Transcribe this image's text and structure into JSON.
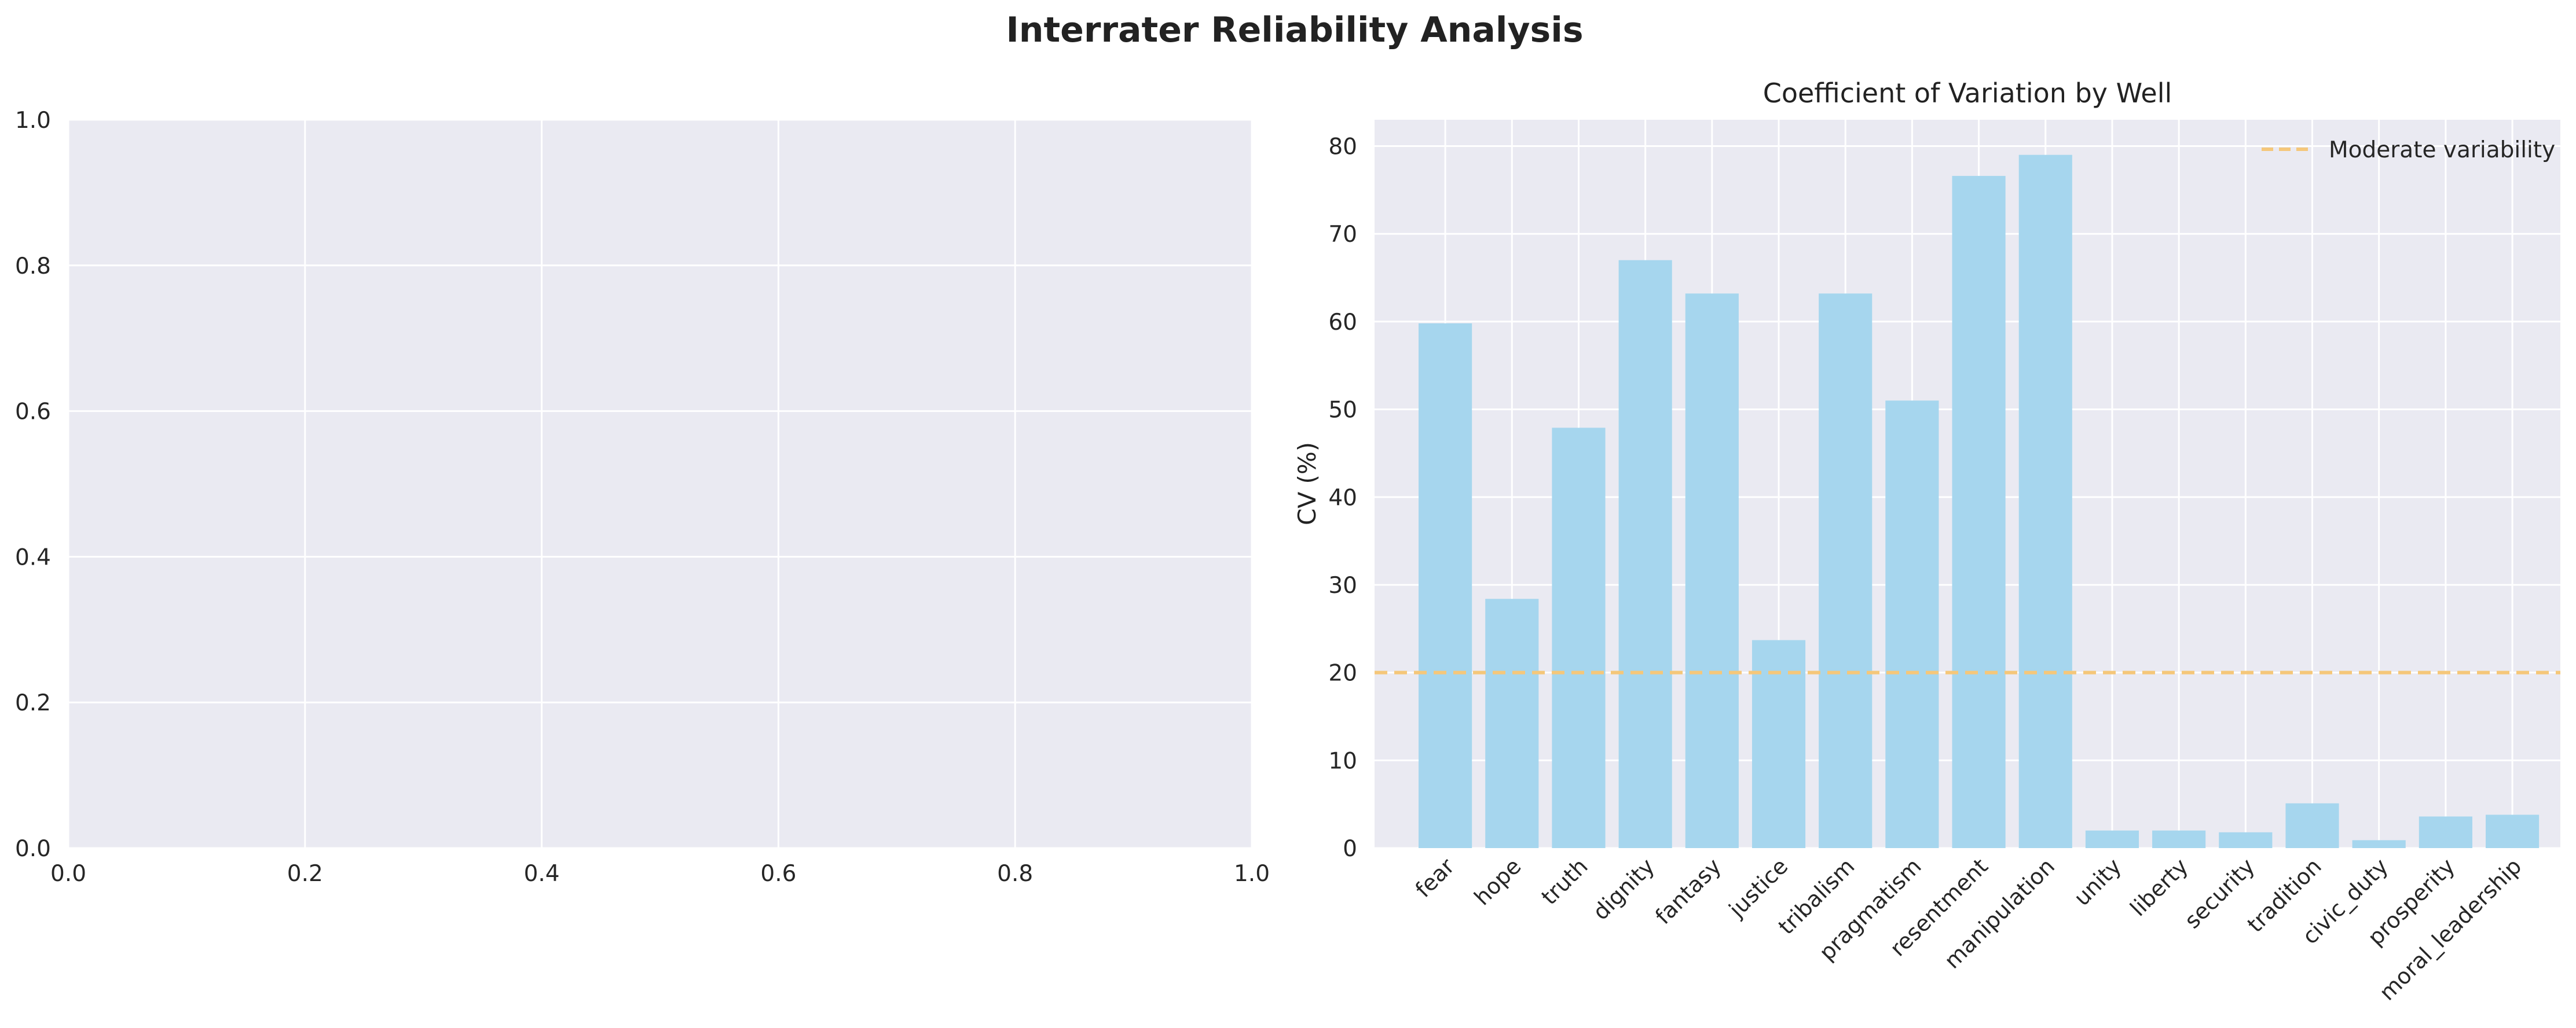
{
  "figure": {
    "title": "Interrater Reliability Analysis"
  },
  "chart_data": [
    {
      "type": "bar",
      "title": "",
      "xlabel": "",
      "ylabel": "",
      "empty": true,
      "xlim": [
        0.0,
        1.0
      ],
      "ylim": [
        0.0,
        1.0
      ],
      "xticks": [
        "0.0",
        "0.2",
        "0.4",
        "0.6",
        "0.8",
        "1.0"
      ],
      "yticks": [
        "0.0",
        "0.2",
        "0.4",
        "0.6",
        "0.8",
        "1.0"
      ],
      "grid": true
    },
    {
      "type": "bar",
      "title": "Coefficient of Variation by Well",
      "xlabel": "",
      "ylabel": "CV (%)",
      "categories": [
        "fear",
        "hope",
        "truth",
        "dignity",
        "fantasy",
        "justice",
        "tribalism",
        "pragmatism",
        "resentment",
        "manipulation",
        "unity",
        "liberty",
        "security",
        "tradition",
        "civic_duty",
        "prosperity",
        "moral_leadership"
      ],
      "values": [
        59.8,
        28.4,
        47.9,
        67.0,
        63.2,
        23.7,
        63.2,
        51.0,
        76.6,
        79.0,
        2.0,
        2.0,
        1.8,
        5.1,
        0.9,
        3.6,
        3.8
      ],
      "bar_color": "#a6d6ee",
      "ylim": [
        0,
        83
      ],
      "yticks": [
        0,
        10,
        20,
        30,
        40,
        50,
        60,
        70,
        80
      ],
      "reference_line": {
        "y": 20,
        "label": "Moderate variability",
        "color": "#f5c77a",
        "style": "dashed"
      },
      "legend": "top-right",
      "grid": true
    }
  ],
  "colors": {
    "axes_bg": "#eaeaf2",
    "grid": "#ffffff",
    "text": "#262626"
  }
}
